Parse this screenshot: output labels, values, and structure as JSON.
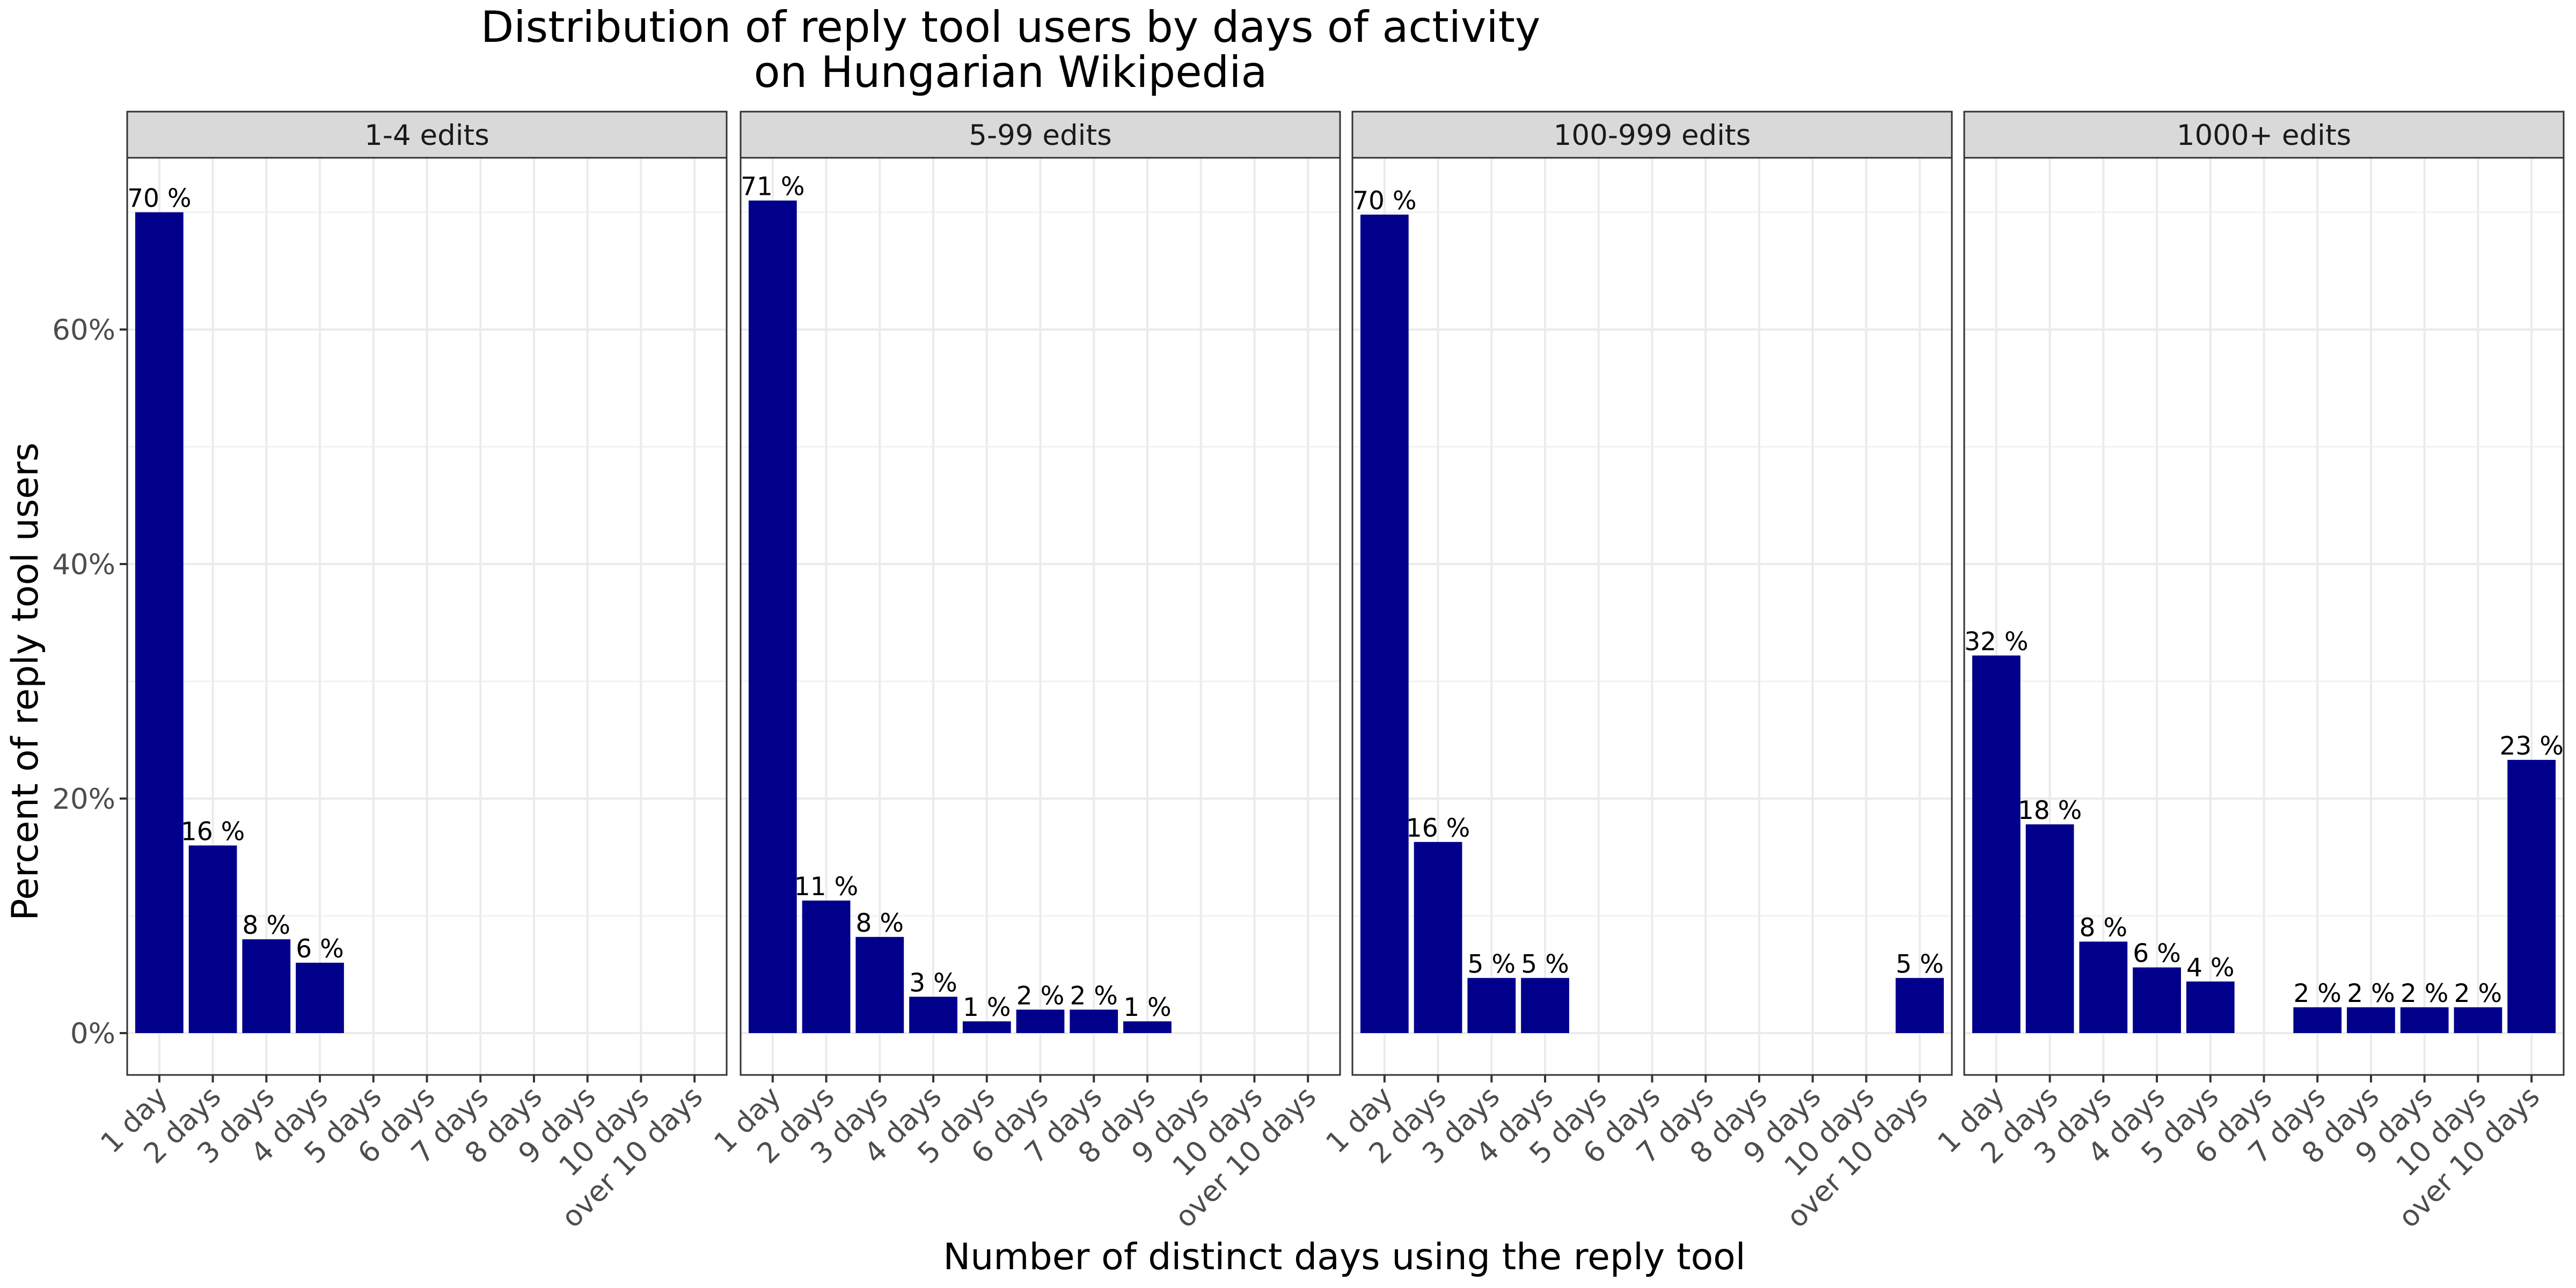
{
  "chart_data": {
    "type": "bar",
    "title": [
      "Distribution of reply tool users by days of activity",
      "on Hungarian Wikipedia"
    ],
    "xlabel": "Number of distinct days using the reply tool",
    "ylabel": "Percent of reply tool users",
    "ylim": [
      0,
      75
    ],
    "yticks": [
      0,
      20,
      40,
      60
    ],
    "ytick_labels": [
      "0%",
      "20%",
      "40%",
      "60%"
    ],
    "categories": [
      "1 day",
      "2 days",
      "3 days",
      "4 days",
      "5 days",
      "6 days",
      "7 days",
      "8 days",
      "9 days",
      "10 days",
      "over 10 days"
    ],
    "grid": true,
    "bar_color": "#00008B",
    "panels": [
      {
        "name": "1-4 edits",
        "values": [
          70,
          16,
          8,
          6,
          null,
          null,
          null,
          null,
          null,
          null,
          null
        ],
        "labels": [
          "70 %",
          "16 %",
          "8 %",
          "6 %",
          "",
          "",
          "",
          "",
          "",
          "",
          ""
        ]
      },
      {
        "name": "5-99 edits",
        "values": [
          71,
          11.3,
          8.2,
          3.1,
          1.0,
          2.0,
          2.0,
          1.0,
          null,
          null,
          null
        ],
        "labels": [
          "71 %",
          "11 %",
          "8 %",
          "3 %",
          "1 %",
          "2 %",
          "2 %",
          "1 %",
          "",
          "",
          ""
        ]
      },
      {
        "name": "100-999 edits",
        "values": [
          69.8,
          16.3,
          4.7,
          4.7,
          null,
          null,
          null,
          null,
          null,
          null,
          4.7
        ],
        "labels": [
          "70 %",
          "16 %",
          "5 %",
          "5 %",
          "",
          "",
          "",
          "",
          "",
          "",
          "5 %"
        ]
      },
      {
        "name": "1000+ edits",
        "values": [
          32.2,
          17.8,
          7.8,
          5.6,
          4.4,
          null,
          2.2,
          2.2,
          2.2,
          2.2,
          23.3
        ],
        "labels": [
          "32 %",
          "18 %",
          "8 %",
          "6 %",
          "4 %",
          "",
          "2 %",
          "2 %",
          "2 %",
          "2 %",
          "23 %"
        ]
      }
    ]
  }
}
